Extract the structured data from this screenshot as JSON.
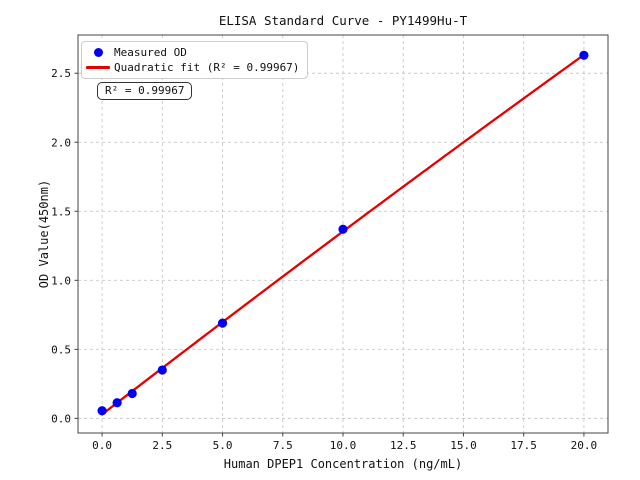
{
  "chart_data": {
    "type": "scatter",
    "title": "ELISA Standard Curve - PY1499Hu-T",
    "xlabel": "Human DPEP1 Concentration (ng/mL)",
    "ylabel": "OD Value(450nm)",
    "x": [
      0,
      0.625,
      1.25,
      2.5,
      5,
      10,
      20
    ],
    "y": [
      0.055,
      0.113,
      0.18,
      0.35,
      0.69,
      1.37,
      2.63
    ],
    "series": [
      {
        "name": "Measured OD",
        "type": "scatter",
        "color": "#0000ee"
      },
      {
        "name": "Quadratic fit (R² = 0.99967)",
        "type": "quadratic_fit",
        "color": "#e60000"
      }
    ],
    "annotation": "R² = 0.99967",
    "r_squared": 0.99967,
    "xticks": {
      "values": [
        0,
        2.5,
        5,
        7.5,
        10,
        12.5,
        15,
        17.5,
        20
      ],
      "labels": [
        "0.0",
        "2.5",
        "5.0",
        "7.5",
        "10.0",
        "12.5",
        "15.0",
        "17.5",
        "20.0"
      ]
    },
    "yticks": {
      "values": [
        0,
        0.5,
        1.0,
        1.5,
        2.0,
        2.5
      ],
      "labels": [
        "0.0",
        "0.5",
        "1.0",
        "1.5",
        "2.0",
        "2.5"
      ]
    },
    "xlim": [
      -1,
      21
    ],
    "ylim": [
      -0.106,
      2.777
    ],
    "grid": true,
    "grid_style": "dashed",
    "legend_position": "upper left",
    "colors": {
      "axis": "#444444",
      "grid": "#c8c8c8",
      "text": "#111111",
      "background": "#ffffff"
    }
  }
}
